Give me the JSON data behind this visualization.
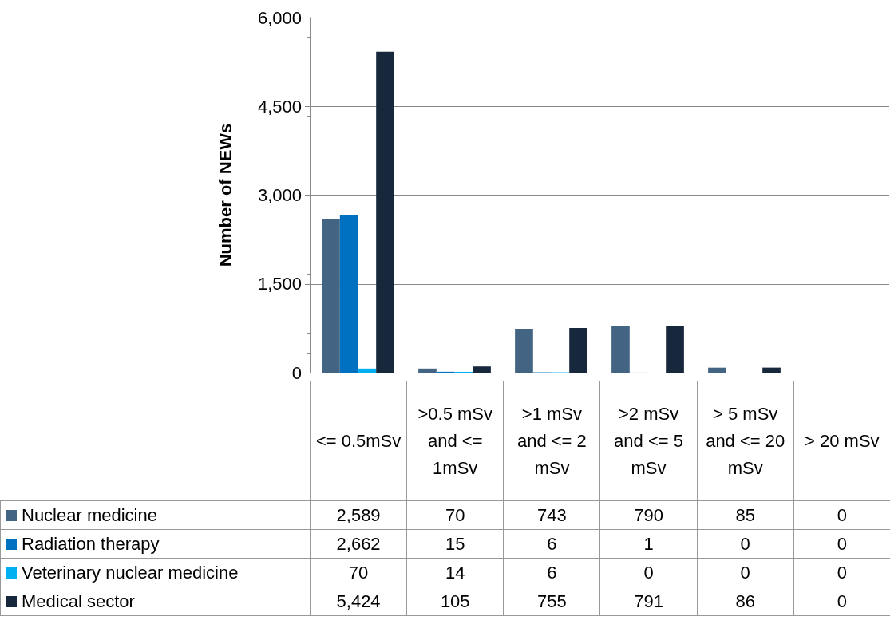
{
  "chart_data": {
    "type": "bar",
    "ylabel": "Number of NEWs",
    "categories": [
      "<= 0.5mSv",
      ">0.5 mSv and <= 1mSv",
      ">1 mSv and <= 2 mSv",
      ">2 mSv and <= 5 mSv",
      "> 5 mSv and <= 20 mSv",
      "> 20 mSv"
    ],
    "series": [
      {
        "name": "Nuclear medicine",
        "color": "#436482",
        "values": [
          2589,
          70,
          743,
          790,
          85,
          0
        ],
        "value_labels": [
          "2,589",
          "70",
          "743",
          "790",
          "85",
          "0"
        ]
      },
      {
        "name": "Radiation therapy",
        "color": "#0070c0",
        "values": [
          2662,
          15,
          6,
          1,
          0,
          0
        ],
        "value_labels": [
          "2,662",
          "15",
          "6",
          "1",
          "0",
          "0"
        ]
      },
      {
        "name": "Veterinary nuclear medicine",
        "color": "#00b0f0",
        "values": [
          70,
          14,
          6,
          0,
          0,
          0
        ],
        "value_labels": [
          "70",
          "14",
          "6",
          "0",
          "0",
          "0"
        ]
      },
      {
        "name": "Medical sector",
        "color": "#17283c",
        "values": [
          5424,
          105,
          755,
          791,
          86,
          0
        ],
        "value_labels": [
          "5,424",
          "105",
          "755",
          "791",
          "86",
          "0"
        ]
      }
    ],
    "ylim": [
      0,
      6000
    ],
    "yticks": [
      {
        "value": 0,
        "label": "0"
      },
      {
        "value": 1500,
        "label": "1,500"
      },
      {
        "value": 3000,
        "label": "3,000"
      },
      {
        "value": 4500,
        "label": "4,500"
      },
      {
        "value": 6000,
        "label": "6,000"
      }
    ],
    "grid": "y",
    "legend": "bottom"
  }
}
